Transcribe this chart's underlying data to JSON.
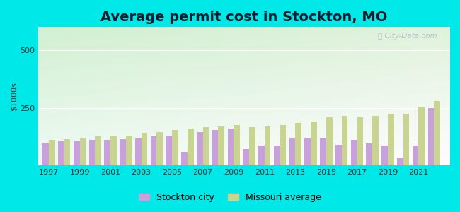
{
  "title": "Average permit cost in Stockton, MO",
  "ylabel": "$1000s",
  "years": [
    1997,
    1998,
    1999,
    2000,
    2001,
    2002,
    2003,
    2004,
    2005,
    2006,
    2007,
    2008,
    2009,
    2010,
    2011,
    2012,
    2013,
    2014,
    2015,
    2016,
    2017,
    2018,
    2019,
    2020,
    2021,
    2022
  ],
  "stockton": [
    100,
    105,
    105,
    110,
    110,
    115,
    120,
    125,
    130,
    60,
    145,
    155,
    160,
    70,
    85,
    85,
    120,
    120,
    120,
    90,
    110,
    95,
    85,
    30,
    85,
    250
  ],
  "missouri": [
    110,
    115,
    120,
    125,
    130,
    130,
    140,
    145,
    155,
    160,
    165,
    170,
    175,
    165,
    170,
    175,
    185,
    190,
    210,
    215,
    210,
    215,
    225,
    225,
    255,
    280
  ],
  "stockton_color": "#c8a0dc",
  "missouri_color": "#c8d490",
  "background_outer": "#00e8e8",
  "bg_top_left": "#c8e8b0",
  "bg_top_right": "#d8f0d8",
  "bg_bottom_left": "#e0f8f4",
  "bg_bottom_right": "#f0fefe",
  "grid_color": "#e8e8e8",
  "ylim": [
    0,
    600
  ],
  "yticks": [
    0,
    250,
    500
  ],
  "xticks": [
    1997,
    1999,
    2001,
    2003,
    2005,
    2007,
    2009,
    2011,
    2013,
    2015,
    2017,
    2019,
    2021
  ],
  "title_fontsize": 14,
  "tick_fontsize": 8,
  "legend_stockton": "Stockton city",
  "legend_missouri": "Missouri average",
  "bar_width": 0.4,
  "xlim_left": 1996.3,
  "xlim_right": 2023.0
}
